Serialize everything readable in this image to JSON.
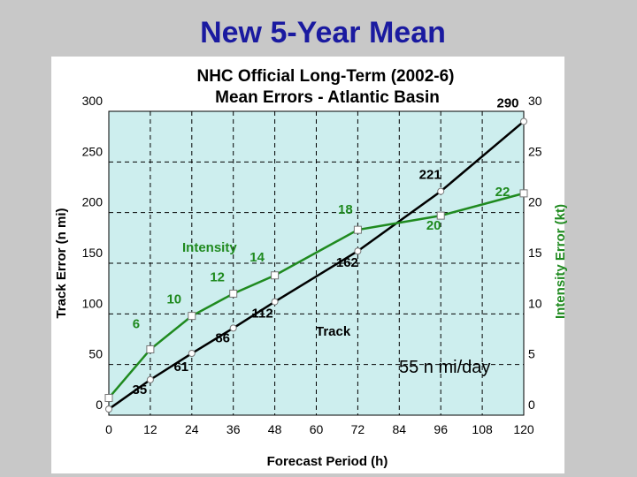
{
  "slide": {
    "title": "New 5-Year Mean"
  },
  "chart_data": {
    "type": "line",
    "title": "NHC Official Long-Term (2002-6)",
    "subtitle": "Mean Errors - Atlantic Basin",
    "xlabel": "Forecast Period (h)",
    "ylabel_left": "Track Error (n mi)",
    "ylabel_right": "Intensity Error (kt)",
    "x_ticks": [
      0,
      12,
      24,
      36,
      48,
      60,
      72,
      84,
      96,
      108,
      120
    ],
    "xlim": [
      0,
      120
    ],
    "y_left_ticks": [
      0,
      50,
      100,
      150,
      200,
      250,
      300
    ],
    "y_left_lim": [
      0,
      300
    ],
    "y_right_ticks": [
      0,
      5,
      10,
      15,
      20,
      25,
      30
    ],
    "y_right_lim": [
      0,
      30
    ],
    "grid": true,
    "series": [
      {
        "name": "Track",
        "axis": "left",
        "color": "#000000",
        "x": [
          0,
          12,
          24,
          36,
          48,
          72,
          96,
          120
        ],
        "values": [
          6,
          35,
          61,
          86,
          112,
          162,
          221,
          290
        ],
        "labels": [
          "",
          "35",
          "61",
          "86",
          "112",
          "162",
          "221",
          "290"
        ]
      },
      {
        "name": "Intensity",
        "axis": "right",
        "color": "#1f8a1f",
        "x": [
          0,
          12,
          24,
          36,
          48,
          72,
          96,
          120
        ],
        "values": [
          1.7,
          6.5,
          9.8,
          12,
          13.8,
          18.3,
          19.7,
          21.9
        ],
        "labels": [
          "",
          "6",
          "10",
          "12",
          "14",
          "18",
          "20",
          "22"
        ]
      }
    ],
    "annotations": [
      "55 n mi/day"
    ]
  }
}
